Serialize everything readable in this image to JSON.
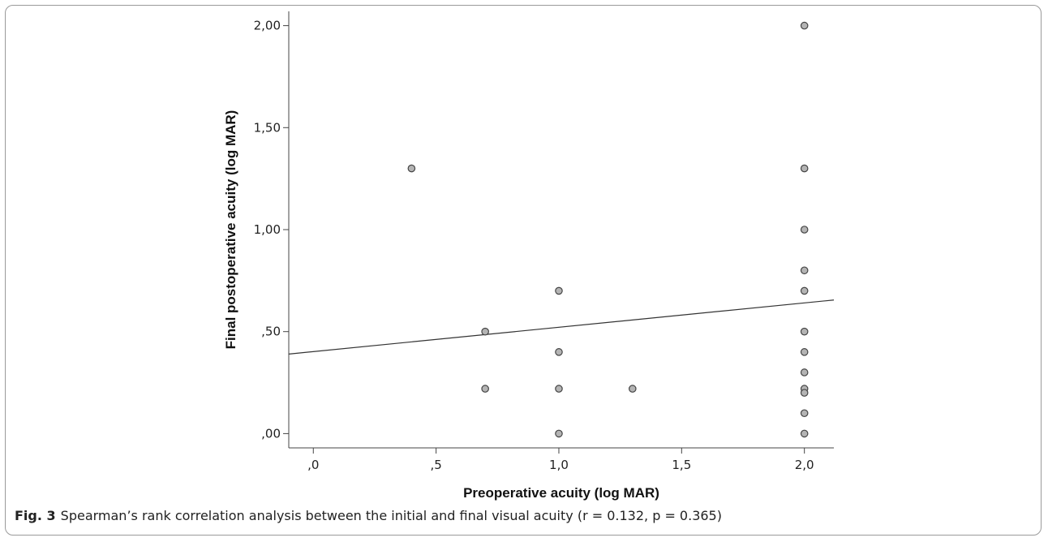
{
  "chart_data": {
    "type": "scatter",
    "xlabel": "Preoperative acuity (log MAR)",
    "ylabel": "Final postoperative acuity (log MAR)",
    "xlim": [
      -0.1,
      2.12
    ],
    "ylim": [
      -0.07,
      2.07
    ],
    "x_ticks": [
      0.0,
      0.5,
      1.0,
      1.5,
      2.0
    ],
    "x_tick_labels": [
      ",0",
      ",5",
      "1,0",
      "1,5",
      "2,0"
    ],
    "y_ticks": [
      0.0,
      0.5,
      1.0,
      1.5,
      2.0
    ],
    "y_tick_labels": [
      ",00",
      ",50",
      "1,00",
      "1,50",
      "2,00"
    ],
    "grid": false,
    "points": [
      {
        "x": 0.4,
        "y": 1.3
      },
      {
        "x": 0.7,
        "y": 0.5
      },
      {
        "x": 0.7,
        "y": 0.22
      },
      {
        "x": 1.0,
        "y": 0.7
      },
      {
        "x": 1.0,
        "y": 0.4
      },
      {
        "x": 1.0,
        "y": 0.22
      },
      {
        "x": 1.0,
        "y": 0.0
      },
      {
        "x": 1.3,
        "y": 0.22
      },
      {
        "x": 2.0,
        "y": 2.0
      },
      {
        "x": 2.0,
        "y": 1.3
      },
      {
        "x": 2.0,
        "y": 1.0
      },
      {
        "x": 2.0,
        "y": 0.8
      },
      {
        "x": 2.0,
        "y": 0.7
      },
      {
        "x": 2.0,
        "y": 0.5
      },
      {
        "x": 2.0,
        "y": 0.4
      },
      {
        "x": 2.0,
        "y": 0.3
      },
      {
        "x": 2.0,
        "y": 0.22
      },
      {
        "x": 2.0,
        "y": 0.2
      },
      {
        "x": 2.0,
        "y": 0.1
      },
      {
        "x": 2.0,
        "y": 0.0
      }
    ],
    "fit_line": {
      "x": [
        -0.1,
        2.12
      ],
      "y": [
        0.39,
        0.655
      ]
    },
    "colors": {
      "marker_fill": "#b4b4b4",
      "marker_stroke": "#444444",
      "axis": "#444444",
      "fit_line": "#333333"
    }
  },
  "caption": {
    "label": "Fig. 3",
    "text": "Spearman’s rank correlation analysis between the initial and final visual acuity (r = 0.132, p = 0.365)"
  }
}
